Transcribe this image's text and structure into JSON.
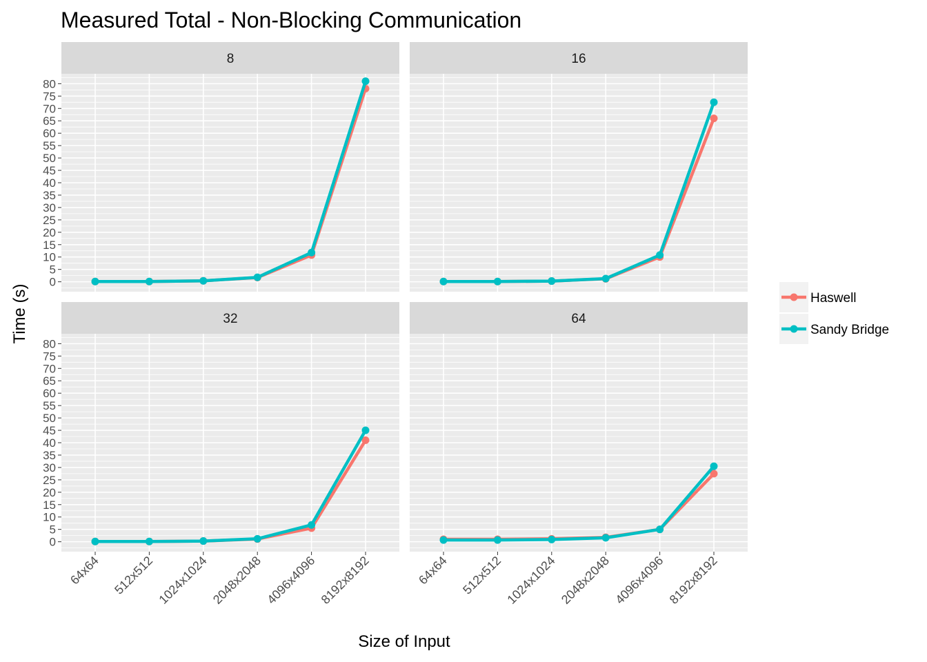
{
  "chart_data": {
    "type": "line",
    "title": "Measured Total - Non-Blocking Communication",
    "xlabel": "Size of Input",
    "ylabel": "Time (s)",
    "categories": [
      "64x64",
      "512x512",
      "1024x1024",
      "2048x2048",
      "4096x4096",
      "8192x8192"
    ],
    "yticks": [
      0,
      5,
      10,
      15,
      20,
      25,
      30,
      35,
      40,
      45,
      50,
      55,
      60,
      65,
      70,
      75,
      80
    ],
    "ylim": [
      -4,
      84
    ],
    "grid": true,
    "legend_position": "right",
    "series_meta": [
      {
        "name": "Haswell",
        "color": "#F8766D"
      },
      {
        "name": "Sandy Bridge",
        "color": "#00BFC4"
      }
    ],
    "facets": [
      {
        "label": "8",
        "series": [
          {
            "name": "Haswell",
            "values": [
              0.1,
              0.1,
              0.4,
              1.7,
              10.8,
              78
            ]
          },
          {
            "name": "Sandy Bridge",
            "values": [
              0.1,
              0.1,
              0.4,
              1.8,
              11.8,
              81
            ]
          }
        ]
      },
      {
        "label": "16",
        "series": [
          {
            "name": "Haswell",
            "values": [
              0.1,
              0.1,
              0.3,
              1.2,
              10.0,
              66
            ]
          },
          {
            "name": "Sandy Bridge",
            "values": [
              0.1,
              0.1,
              0.3,
              1.3,
              10.8,
              72.5
            ]
          }
        ]
      },
      {
        "label": "32",
        "series": [
          {
            "name": "Haswell",
            "values": [
              0.1,
              0.1,
              0.3,
              1.1,
              5.5,
              41
            ]
          },
          {
            "name": "Sandy Bridge",
            "values": [
              0.1,
              0.1,
              0.3,
              1.2,
              6.8,
              45
            ]
          }
        ]
      },
      {
        "label": "64",
        "series": [
          {
            "name": "Haswell",
            "values": [
              1.0,
              1.0,
              1.2,
              1.8,
              5.0,
              27.5
            ]
          },
          {
            "name": "Sandy Bridge",
            "values": [
              0.7,
              0.7,
              0.9,
              1.6,
              5.0,
              30.5
            ]
          }
        ]
      }
    ]
  }
}
